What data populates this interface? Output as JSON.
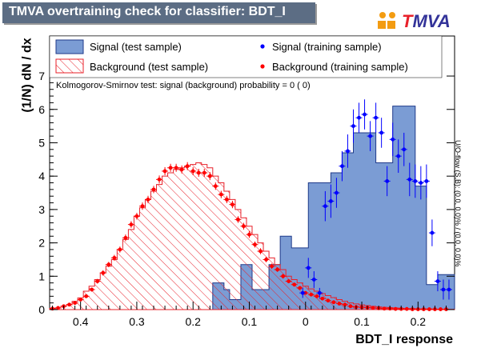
{
  "header": {
    "title": "TMVA overtraining check for classifier: BDT_I",
    "logo_text_t": "T",
    "logo_text_rest": "MVA"
  },
  "side_note": "U/O-flow (S,B): (0.0, 0.0)% / (0.0, 0.0)%",
  "ks_text": "Kolmogorov-Smirnov test: signal (background) probability =   0 (    0)",
  "colors": {
    "signal_fill": "#7b9cd4",
    "signal_line": "#1f3a8a",
    "background_hatch": "#e8202a",
    "signal_marker": "#0000ff",
    "background_marker": "#ff0000"
  },
  "chart_data": {
    "type": "histogram",
    "title": "TMVA overtraining check for classifier: BDT_I",
    "xlabel": "BDT_I response",
    "ylabel": "(1/N) dN / dx",
    "xlim": [
      -0.455,
      0.265
    ],
    "ylim": [
      0,
      8.2
    ],
    "x_reversed_ticks": true,
    "xticks": [
      {
        "value": -0.4,
        "label": "0.4"
      },
      {
        "value": -0.3,
        "label": "0.3"
      },
      {
        "value": -0.2,
        "label": "0.2"
      },
      {
        "value": -0.1,
        "label": "0.1"
      },
      {
        "value": 0.0,
        "label": "0"
      },
      {
        "value": 0.1,
        "label": "0.1"
      },
      {
        "value": 0.2,
        "label": "0.2"
      }
    ],
    "yticks": [
      0,
      1,
      2,
      3,
      4,
      5,
      6,
      7
    ],
    "grid": false,
    "legend": [
      {
        "label": "Signal (test sample)",
        "style": "filled-box"
      },
      {
        "label": "Background (test sample)",
        "style": "hatched-box"
      },
      {
        "label": "Signal (training sample)",
        "style": "blue-marker"
      },
      {
        "label": "Background (training sample)",
        "style": "red-marker"
      }
    ],
    "bin_edges": [
      -0.455,
      -0.445,
      -0.435,
      -0.425,
      -0.415,
      -0.405,
      -0.395,
      -0.385,
      -0.375,
      -0.365,
      -0.355,
      -0.345,
      -0.335,
      -0.325,
      -0.315,
      -0.305,
      -0.295,
      -0.285,
      -0.275,
      -0.265,
      -0.255,
      -0.245,
      -0.235,
      -0.225,
      -0.215,
      -0.205,
      -0.195,
      -0.185,
      -0.175,
      -0.165,
      -0.155,
      -0.145,
      -0.135,
      -0.125,
      -0.115,
      -0.105,
      -0.095,
      -0.085,
      -0.075,
      -0.065,
      -0.055,
      -0.045,
      -0.035,
      -0.025,
      -0.015,
      -0.005,
      0.005,
      0.015,
      0.025,
      0.035,
      0.045,
      0.055,
      0.065,
      0.075,
      0.085,
      0.095,
      0.105,
      0.115,
      0.125,
      0.135,
      0.145,
      0.155,
      0.165,
      0.175,
      0.185,
      0.195,
      0.205,
      0.215,
      0.225,
      0.235,
      0.245,
      0.255,
      0.265
    ],
    "series": [
      {
        "name": "Signal (test sample)",
        "kind": "filled-hist",
        "values": [
          0,
          0,
          0,
          0,
          0,
          0,
          0,
          0,
          0,
          0,
          0,
          0,
          0,
          0,
          0,
          0,
          0,
          0,
          0,
          0,
          0,
          0,
          0,
          0,
          0,
          0,
          0,
          0,
          0,
          0.8,
          0.8,
          0.6,
          0.3,
          0.3,
          1.35,
          1.35,
          0.6,
          0.6,
          0.6,
          1.35,
          1.35,
          2.2,
          2.2,
          1.85,
          1.85,
          1.85,
          3.8,
          3.8,
          3.8,
          3.8,
          4.1,
          4.1,
          4.7,
          4.7,
          5.3,
          5.3,
          5.3,
          5.3,
          4.4,
          4.4,
          4.4,
          6.1,
          6.1,
          6.1,
          6.1,
          3.7,
          3.7,
          0.75,
          0.75,
          1.05,
          1.05,
          1.05
        ]
      },
      {
        "name": "Background (test sample)",
        "kind": "hatched-hist",
        "values": [
          0.03,
          0.05,
          0.1,
          0.15,
          0.25,
          0.35,
          0.55,
          0.7,
          0.9,
          1.1,
          1.3,
          1.5,
          1.8,
          2.1,
          2.4,
          2.8,
          3.05,
          3.3,
          3.55,
          3.75,
          4.0,
          4.1,
          4.2,
          4.25,
          4.3,
          4.35,
          4.4,
          4.35,
          4.25,
          4.0,
          3.8,
          3.55,
          3.3,
          3.0,
          2.75,
          2.5,
          2.25,
          2.0,
          1.75,
          1.55,
          1.35,
          1.2,
          1.0,
          0.9,
          0.8,
          0.7,
          0.62,
          0.55,
          0.48,
          0.42,
          0.36,
          0.3,
          0.25,
          0.2,
          0.17,
          0.14,
          0.12,
          0.1,
          0.08,
          0.07,
          0.06,
          0.05,
          0.04,
          0.03,
          0.03,
          0.02,
          0.02,
          0.02,
          0.01,
          0.01,
          0.01,
          0.01
        ]
      },
      {
        "name": "Signal (training sample)",
        "kind": "points",
        "x": [
          -0.005,
          0.005,
          0.015,
          0.025,
          0.035,
          0.045,
          0.055,
          0.065,
          0.075,
          0.085,
          0.095,
          0.105,
          0.115,
          0.125,
          0.135,
          0.145,
          0.155,
          0.165,
          0.175,
          0.185,
          0.195,
          0.205,
          0.215,
          0.225,
          0.235,
          0.245,
          0.255
        ],
        "y": [
          0.5,
          1.25,
          0.9,
          0.5,
          3.1,
          3.25,
          3.5,
          4.3,
          4.75,
          5.5,
          5.75,
          5.85,
          5.2,
          5.75,
          5.3,
          3.85,
          5.1,
          4.6,
          4.8,
          3.9,
          3.85,
          3.8,
          3.85,
          2.3,
          0.85,
          0.6,
          0.6
        ],
        "err": [
          0.15,
          0.3,
          0.25,
          0.15,
          0.45,
          0.5,
          0.45,
          0.45,
          0.5,
          0.5,
          0.45,
          0.45,
          0.45,
          0.45,
          0.45,
          0.45,
          0.5,
          0.5,
          0.5,
          0.5,
          0.5,
          0.5,
          0.5,
          0.4,
          0.3,
          0.3,
          0.3
        ]
      },
      {
        "name": "Background (training sample)",
        "kind": "points",
        "x": [
          -0.45,
          -0.44,
          -0.43,
          -0.42,
          -0.41,
          -0.4,
          -0.39,
          -0.38,
          -0.37,
          -0.36,
          -0.35,
          -0.34,
          -0.33,
          -0.32,
          -0.31,
          -0.3,
          -0.29,
          -0.28,
          -0.27,
          -0.26,
          -0.25,
          -0.24,
          -0.23,
          -0.22,
          -0.21,
          -0.2,
          -0.19,
          -0.18,
          -0.17,
          -0.16,
          -0.15,
          -0.14,
          -0.13,
          -0.12,
          -0.11,
          -0.1,
          -0.09,
          -0.08,
          -0.07,
          -0.06,
          -0.05,
          -0.04,
          -0.03,
          -0.02,
          -0.01,
          0.0,
          0.01,
          0.02,
          0.03,
          0.04,
          0.05,
          0.06,
          0.07,
          0.08,
          0.09,
          0.1,
          0.11,
          0.12,
          0.13,
          0.14,
          0.15,
          0.16,
          0.17,
          0.18,
          0.19,
          0.2,
          0.21,
          0.22,
          0.23,
          0.24,
          0.25
        ],
        "y": [
          0.03,
          0.05,
          0.1,
          0.15,
          0.2,
          0.3,
          0.4,
          0.6,
          0.85,
          1.1,
          1.35,
          1.55,
          1.8,
          2.15,
          2.55,
          2.8,
          3.1,
          3.3,
          3.6,
          3.9,
          4.15,
          4.25,
          4.25,
          4.2,
          4.3,
          4.15,
          4.1,
          4.1,
          4.0,
          3.7,
          3.45,
          3.3,
          3.15,
          2.7,
          2.5,
          2.25,
          1.95,
          1.75,
          1.5,
          1.3,
          1.2,
          1.0,
          0.85,
          0.75,
          0.65,
          0.5,
          0.45,
          0.4,
          0.33,
          0.27,
          0.22,
          0.18,
          0.15,
          0.1,
          0.08,
          0.07,
          0.06,
          0.05,
          0.04,
          0.03,
          0.03,
          0.02,
          0.02,
          0.02,
          0.01,
          0.01,
          0.01,
          0.01,
          0.01,
          0.01,
          0.01
        ],
        "err": [
          0.02,
          0.02,
          0.03,
          0.03,
          0.04,
          0.05,
          0.05,
          0.06,
          0.07,
          0.08,
          0.08,
          0.09,
          0.09,
          0.1,
          0.1,
          0.1,
          0.11,
          0.11,
          0.11,
          0.12,
          0.12,
          0.12,
          0.12,
          0.12,
          0.12,
          0.12,
          0.12,
          0.12,
          0.12,
          0.11,
          0.11,
          0.11,
          0.11,
          0.1,
          0.1,
          0.1,
          0.09,
          0.09,
          0.08,
          0.08,
          0.07,
          0.07,
          0.06,
          0.06,
          0.05,
          0.05,
          0.05,
          0.04,
          0.04,
          0.04,
          0.03,
          0.03,
          0.03,
          0.02,
          0.02,
          0.02,
          0.02,
          0.02,
          0.02,
          0.02,
          0.02,
          0.01,
          0.01,
          0.01,
          0.01,
          0.01,
          0.01,
          0.01,
          0.01,
          0.01,
          0.01
        ]
      }
    ]
  }
}
